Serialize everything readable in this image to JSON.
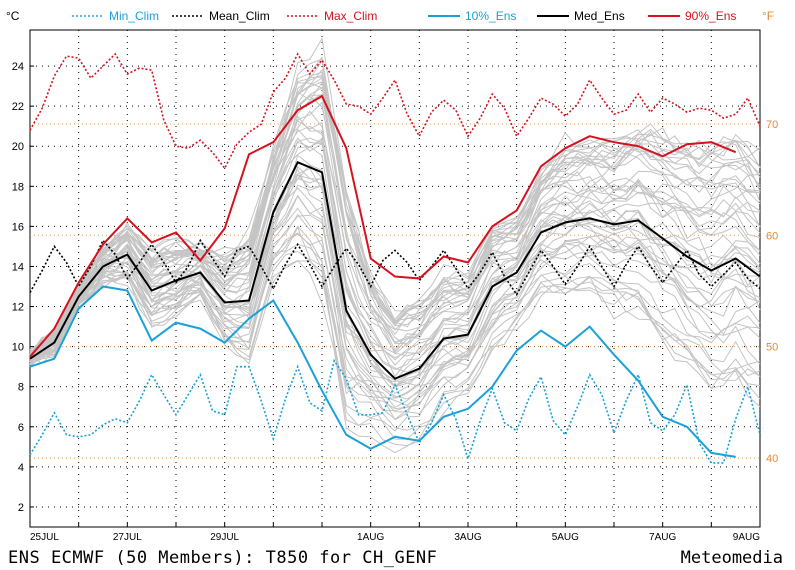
{
  "footer": {
    "title": "ENS ECMWF (50 Members): T850 for CH_GENF",
    "credit": "Meteomedia"
  },
  "chart_data": {
    "type": "line",
    "left_unit": "°C",
    "right_unit": "°F",
    "ylim": [
      1,
      25.8
    ],
    "xlim": [
      0,
      15
    ],
    "grid": true,
    "legend_position": "top",
    "y_ticks": [
      2,
      4,
      6,
      8,
      10,
      12,
      14,
      16,
      18,
      20,
      22,
      24
    ],
    "fahrenheit_ticks": [
      40,
      50,
      60,
      70
    ],
    "x_tick_labels": [
      {
        "x": 0,
        "label": "25JUL"
      },
      {
        "x": 2,
        "label": "27JUL"
      },
      {
        "x": 4,
        "label": "29JUL"
      },
      {
        "x": 7,
        "label": "1AUG"
      },
      {
        "x": 9,
        "label": "3AUG"
      },
      {
        "x": 11,
        "label": "5AUG"
      },
      {
        "x": 13,
        "label": "7AUG"
      },
      {
        "x": 15,
        "label": "9AUG"
      }
    ],
    "series": [
      {
        "name": "Min_Clim",
        "color": "#1ba1d8",
        "dash": "dotted",
        "x": [
          0,
          0.25,
          0.5,
          0.75,
          1,
          1.25,
          1.5,
          1.75,
          2,
          2.25,
          2.5,
          2.75,
          3,
          3.25,
          3.5,
          3.75,
          4,
          4.25,
          4.5,
          4.75,
          5,
          5.25,
          5.5,
          5.75,
          6,
          6.25,
          6.5,
          6.75,
          7,
          7.25,
          7.5,
          7.75,
          8,
          8.25,
          8.5,
          8.75,
          9,
          9.25,
          9.5,
          9.75,
          10,
          10.25,
          10.5,
          10.75,
          11,
          11.25,
          11.5,
          11.75,
          12,
          12.25,
          12.5,
          12.75,
          13,
          13.25,
          13.5,
          13.75,
          14,
          14.25,
          14.5,
          14.75,
          15
        ],
        "values": [
          4.6,
          5.6,
          6.7,
          5.6,
          5.5,
          5.6,
          6.1,
          6.4,
          6.2,
          7.3,
          8.6,
          7.6,
          6.6,
          7.6,
          8.6,
          6.8,
          6.6,
          9.0,
          9.0,
          7.3,
          5.4,
          7.4,
          9.0,
          7.2,
          6.8,
          9.3,
          8.4,
          6.6,
          6.6,
          6.7,
          8.1,
          6.6,
          5.2,
          6.2,
          7.6,
          6.4,
          4.4,
          6.3,
          7.9,
          6.2,
          5.8,
          7.4,
          8.5,
          6.3,
          5.6,
          7.0,
          8.6,
          7.6,
          5.7,
          7.3,
          8.6,
          6.2,
          5.8,
          6.6,
          8.1,
          5.2,
          4.2,
          4.2,
          6.4,
          8.0,
          5.6
        ]
      },
      {
        "name": "Mean_Clim",
        "color": "#000000",
        "dash": "dotted",
        "x": [
          0,
          0.25,
          0.5,
          0.75,
          1,
          1.25,
          1.5,
          1.75,
          2,
          2.25,
          2.5,
          2.75,
          3,
          3.25,
          3.5,
          3.75,
          4,
          4.25,
          4.5,
          4.75,
          5,
          5.25,
          5.5,
          5.75,
          6,
          6.25,
          6.5,
          6.75,
          7,
          7.25,
          7.5,
          7.75,
          8,
          8.25,
          8.5,
          8.75,
          9,
          9.25,
          9.5,
          9.75,
          10,
          10.25,
          10.5,
          10.75,
          11,
          11.25,
          11.5,
          11.75,
          12,
          12.25,
          12.5,
          12.75,
          13,
          13.25,
          13.5,
          13.75,
          14,
          14.25,
          14.5,
          14.75,
          15
        ],
        "values": [
          12.7,
          13.8,
          15.0,
          14.2,
          13.0,
          14.0,
          15.3,
          14.6,
          13.4,
          14.2,
          15.1,
          14.2,
          13.2,
          14.0,
          15.3,
          14.4,
          13.5,
          14.8,
          15.0,
          14.0,
          12.9,
          14.1,
          15.1,
          14.1,
          13.0,
          14.0,
          14.9,
          14.1,
          13.0,
          14.3,
          14.8,
          14.2,
          13.3,
          14.0,
          14.8,
          13.9,
          12.9,
          13.7,
          14.7,
          13.5,
          12.6,
          13.7,
          14.8,
          14.0,
          13.1,
          14.0,
          15.0,
          14.0,
          13.0,
          14.1,
          15.0,
          14.0,
          13.2,
          14.0,
          14.8,
          13.6,
          13.0,
          13.6,
          14.2,
          13.4,
          12.9
        ]
      },
      {
        "name": "Max_Clim",
        "color": "#d6121e",
        "dash": "dotted",
        "x": [
          0,
          0.25,
          0.5,
          0.75,
          1,
          1.25,
          1.5,
          1.75,
          2,
          2.25,
          2.5,
          2.75,
          3,
          3.25,
          3.5,
          3.75,
          4,
          4.25,
          4.5,
          4.75,
          5,
          5.25,
          5.5,
          5.75,
          6,
          6.25,
          6.5,
          6.75,
          7,
          7.25,
          7.5,
          7.75,
          8,
          8.25,
          8.5,
          8.75,
          9,
          9.25,
          9.5,
          9.75,
          10,
          10.25,
          10.5,
          10.75,
          11,
          11.25,
          11.5,
          11.75,
          12,
          12.25,
          12.5,
          12.75,
          13,
          13.25,
          13.5,
          13.75,
          14,
          14.25,
          14.5,
          14.75,
          15
        ],
        "values": [
          20.8,
          21.9,
          23.5,
          24.5,
          24.4,
          23.4,
          24.0,
          24.6,
          23.6,
          23.9,
          23.8,
          21.3,
          20.0,
          19.9,
          20.3,
          19.7,
          18.9,
          20.1,
          20.7,
          21.1,
          22.7,
          23.4,
          24.6,
          23.6,
          24.3,
          23.3,
          22.1,
          22.0,
          21.6,
          22.4,
          23.3,
          21.6,
          20.5,
          21.7,
          22.3,
          21.8,
          20.5,
          21.4,
          22.6,
          21.9,
          20.5,
          21.4,
          22.4,
          22.1,
          21.5,
          22.1,
          23.3,
          22.4,
          21.6,
          21.8,
          22.6,
          21.7,
          22.4,
          22.1,
          21.7,
          21.9,
          21.8,
          21.4,
          21.6,
          22.4,
          21.0
        ]
      },
      {
        "name": "10%_Ens",
        "color": "#1ba1d8",
        "dash": "solid",
        "x": [
          0,
          0.5,
          1,
          1.5,
          2,
          2.5,
          3,
          3.5,
          4,
          4.5,
          5,
          5.5,
          6,
          6.5,
          7,
          7.5,
          8,
          8.5,
          9,
          9.5,
          10,
          10.5,
          11,
          11.5,
          12,
          12.5,
          13,
          13.5,
          14,
          14.5
        ],
        "values": [
          9.0,
          9.4,
          11.9,
          13.0,
          12.8,
          10.3,
          11.2,
          10.9,
          10.2,
          11.4,
          12.3,
          10.2,
          7.8,
          5.6,
          4.9,
          5.5,
          5.3,
          6.5,
          6.9,
          8.0,
          9.8,
          10.8,
          10.0,
          11.0,
          9.6,
          8.3,
          6.5,
          6.0,
          4.7,
          4.5
        ]
      },
      {
        "name": "Med_Ens",
        "color": "#000000",
        "dash": "solid",
        "x": [
          0,
          0.5,
          1,
          1.5,
          2,
          2.5,
          3,
          3.5,
          4,
          4.5,
          5,
          5.5,
          6,
          6.5,
          7,
          7.5,
          8,
          8.5,
          9,
          9.5,
          10,
          10.5,
          11,
          11.5,
          12,
          12.5,
          13,
          13.5,
          14,
          14.5,
          15
        ],
        "values": [
          9.4,
          10.2,
          12.5,
          14.0,
          14.6,
          12.8,
          13.3,
          13.7,
          12.2,
          12.3,
          16.7,
          19.2,
          18.7,
          11.8,
          9.6,
          8.4,
          8.9,
          10.4,
          10.6,
          13.0,
          13.7,
          15.7,
          16.2,
          16.4,
          16.1,
          16.3,
          15.4,
          14.5,
          13.8,
          14.4,
          13.5
        ]
      },
      {
        "name": "90%_Ens",
        "color": "#d6121e",
        "dash": "solid",
        "x": [
          0,
          0.5,
          1,
          1.5,
          2,
          2.5,
          3,
          3.5,
          4,
          4.5,
          5,
          5.5,
          6,
          6.5,
          7,
          7.5,
          8,
          8.5,
          9,
          9.5,
          10,
          10.5,
          11,
          11.5,
          12,
          12.5,
          13,
          13.5,
          14,
          14.5
        ],
        "values": [
          9.5,
          10.9,
          13.2,
          15.1,
          16.4,
          15.2,
          15.7,
          14.3,
          15.9,
          19.6,
          20.2,
          21.8,
          22.5,
          19.9,
          14.4,
          13.5,
          13.4,
          14.5,
          14.2,
          16.0,
          16.8,
          19.0,
          19.9,
          20.5,
          20.2,
          20.0,
          19.5,
          20.1,
          20.2,
          19.7
        ]
      }
    ]
  }
}
